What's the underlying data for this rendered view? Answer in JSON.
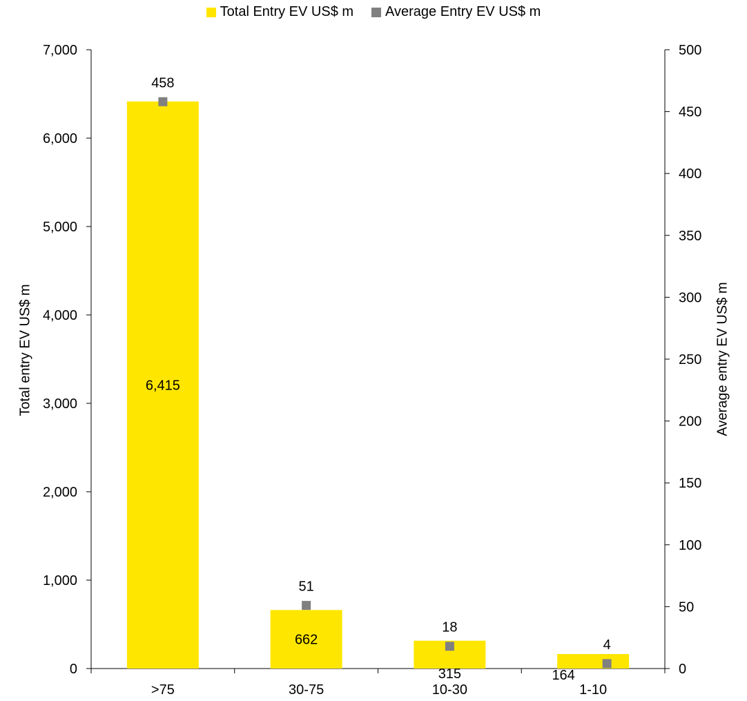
{
  "chart_data": {
    "type": "bar",
    "categories": [
      ">75",
      "30-75",
      "10-30",
      "1-10"
    ],
    "series": [
      {
        "name": "Total Entry EV US$ m",
        "kind": "bar",
        "axis": "left",
        "values": [
          6415,
          662,
          315,
          164
        ],
        "labels": [
          "6,415",
          "662",
          "315",
          "164"
        ],
        "color": "#FFE600"
      },
      {
        "name": "Average Entry EV US$ m",
        "kind": "marker",
        "axis": "right",
        "values": [
          458,
          51,
          18,
          4
        ],
        "labels": [
          "458",
          "51",
          "18",
          "4"
        ],
        "color": "#808080"
      }
    ],
    "ylabel": "Total entry EV US$ m",
    "y2label": "Average entry EV US$ m",
    "ylim": [
      0,
      7000
    ],
    "y2lim": [
      0,
      500
    ],
    "yticks": [
      "0",
      "1,000",
      "2,000",
      "3,000",
      "4,000",
      "5,000",
      "6,000",
      "7,000"
    ],
    "y2ticks": [
      "0",
      "50",
      "100",
      "150",
      "200",
      "250",
      "300",
      "350",
      "400",
      "450",
      "500"
    ],
    "grid": false,
    "legend_position": "top-center"
  }
}
